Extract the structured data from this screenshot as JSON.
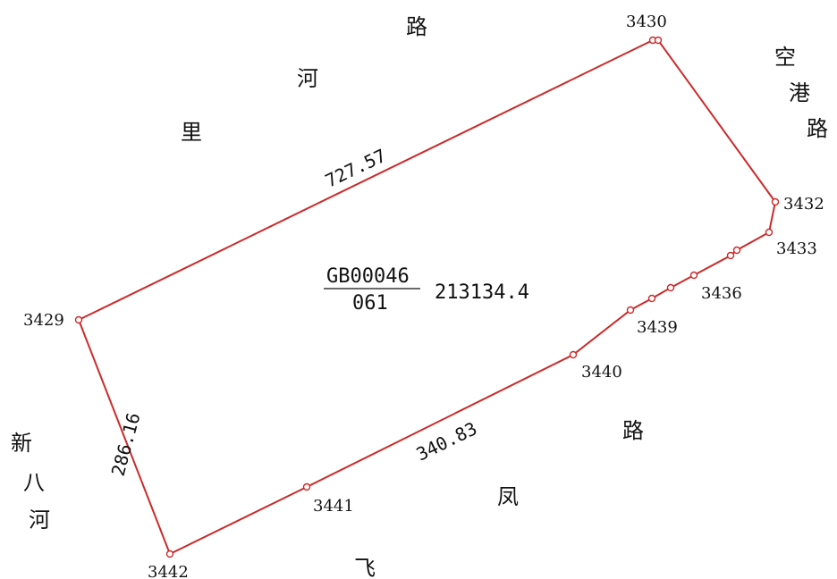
{
  "parcel": {
    "code_top": "GB00046",
    "code_bottom": "061",
    "area": "213134.4"
  },
  "edge_lengths": {
    "north": "727.57",
    "west": "286.16",
    "south": "340.83"
  },
  "points": {
    "p3429": "3429",
    "p3430": "3430",
    "p3432": "3432",
    "p3433": "3433",
    "p3436": "3436",
    "p3439": "3439",
    "p3440": "3440",
    "p3441": "3441",
    "p3442": "3442"
  },
  "roads": {
    "lihe_road": [
      "路",
      "河",
      "里"
    ],
    "konggang_road": [
      "空",
      "港",
      "路"
    ],
    "xinbahe": [
      "新",
      "八",
      "河"
    ],
    "feifeng_road": [
      "路",
      "凤",
      "飞"
    ]
  },
  "colors": {
    "boundary": "#cc2a2a",
    "text": "#111111"
  }
}
